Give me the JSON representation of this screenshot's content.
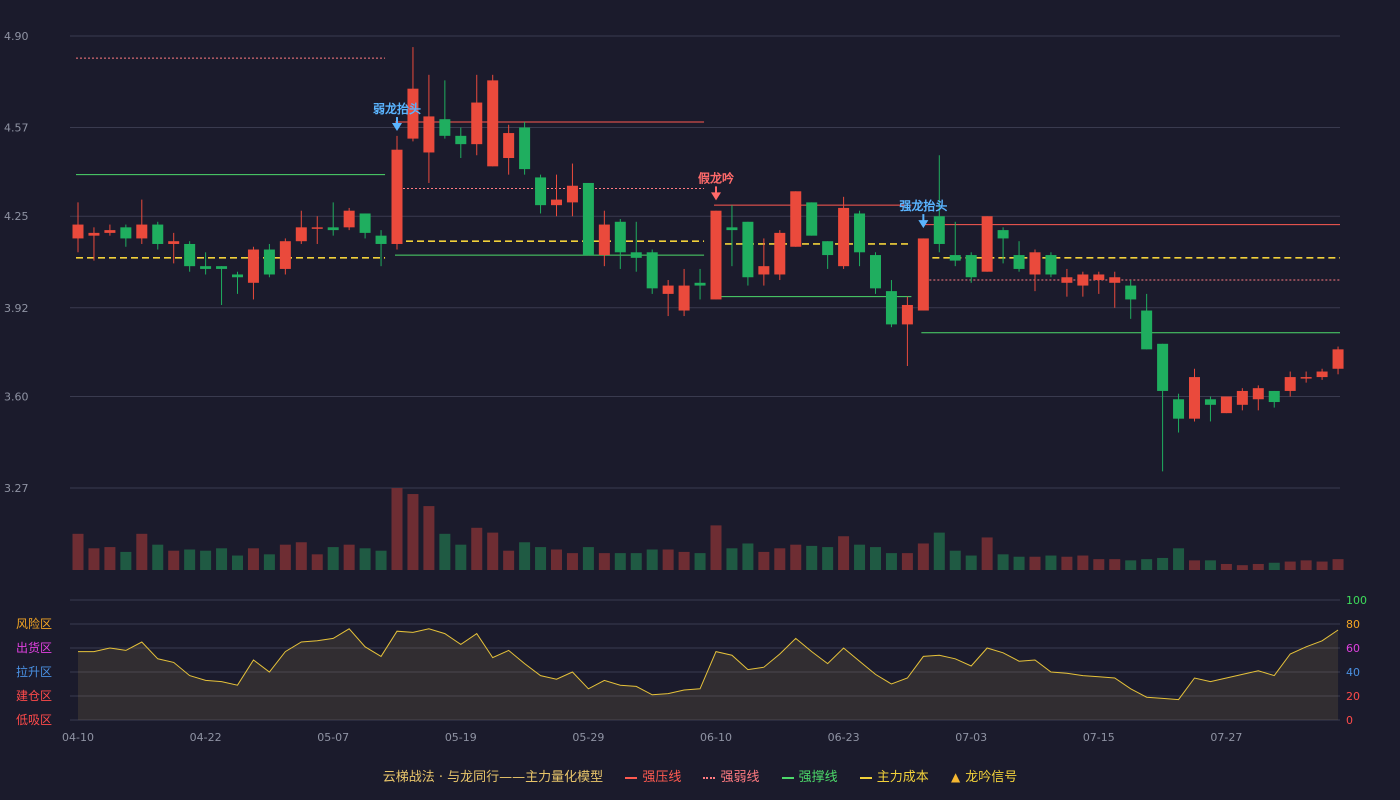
{
  "chart_data": {
    "type": "candlestick",
    "price_axis": {
      "ticks": [
        "4.90",
        "4.57",
        "4.25",
        "3.92",
        "3.60",
        "3.27"
      ],
      "ylim": [
        3.27,
        4.9
      ]
    },
    "x_ticks": [
      {
        "label": "04-10",
        "index": 0
      },
      {
        "label": "04-22",
        "index": 8
      },
      {
        "label": "05-07",
        "index": 16
      },
      {
        "label": "05-19",
        "index": 24
      },
      {
        "label": "05-29",
        "index": 32
      },
      {
        "label": "06-10",
        "index": 40
      },
      {
        "label": "06-23",
        "index": 48
      },
      {
        "label": "07-03",
        "index": 56
      },
      {
        "label": "07-15",
        "index": 64
      },
      {
        "label": "07-27",
        "index": 72
      }
    ],
    "candles": [
      [
        4.17,
        4.22,
        4.3,
        4.12
      ],
      [
        4.18,
        4.19,
        4.21,
        4.09
      ],
      [
        4.19,
        4.2,
        4.22,
        4.18
      ],
      [
        4.21,
        4.17,
        4.22,
        4.14
      ],
      [
        4.17,
        4.22,
        4.31,
        4.15
      ],
      [
        4.22,
        4.15,
        4.23,
        4.13
      ],
      [
        4.15,
        4.16,
        4.19,
        4.08
      ],
      [
        4.15,
        4.07,
        4.16,
        4.05
      ],
      [
        4.07,
        4.06,
        4.12,
        4.04
      ],
      [
        4.07,
        4.06,
        4.07,
        3.93
      ],
      [
        4.04,
        4.03,
        4.05,
        3.97
      ],
      [
        4.01,
        4.13,
        4.14,
        3.95
      ],
      [
        4.13,
        4.04,
        4.15,
        4.03
      ],
      [
        4.06,
        4.16,
        4.17,
        4.04
      ],
      [
        4.16,
        4.21,
        4.27,
        4.15
      ],
      [
        4.21,
        4.21,
        4.25,
        4.15
      ],
      [
        4.21,
        4.2,
        4.3,
        4.18
      ],
      [
        4.21,
        4.27,
        4.28,
        4.2
      ],
      [
        4.26,
        4.19,
        4.26,
        4.17
      ],
      [
        4.18,
        4.15,
        4.2,
        4.07
      ],
      [
        4.15,
        4.49,
        4.54,
        4.13
      ],
      [
        4.53,
        4.71,
        4.86,
        4.52
      ],
      [
        4.48,
        4.61,
        4.76,
        4.37
      ],
      [
        4.6,
        4.54,
        4.74,
        4.53
      ],
      [
        4.54,
        4.51,
        4.57,
        4.46
      ],
      [
        4.51,
        4.66,
        4.76,
        4.47
      ],
      [
        4.43,
        4.74,
        4.76,
        4.43
      ],
      [
        4.46,
        4.55,
        4.58,
        4.4
      ],
      [
        4.57,
        4.42,
        4.59,
        4.4
      ],
      [
        4.39,
        4.29,
        4.4,
        4.26
      ],
      [
        4.29,
        4.31,
        4.4,
        4.25
      ],
      [
        4.3,
        4.36,
        4.44,
        4.25
      ],
      [
        4.37,
        4.11,
        4.37,
        4.11
      ],
      [
        4.11,
        4.22,
        4.27,
        4.07
      ],
      [
        4.23,
        4.12,
        4.24,
        4.06
      ],
      [
        4.12,
        4.1,
        4.23,
        4.05
      ],
      [
        4.12,
        3.99,
        4.13,
        3.97
      ],
      [
        3.97,
        4.0,
        4.02,
        3.89
      ],
      [
        3.91,
        4.0,
        4.06,
        3.89
      ],
      [
        4.01,
        4.0,
        4.06,
        3.95
      ],
      [
        3.95,
        4.27,
        4.27,
        3.95
      ],
      [
        4.21,
        4.2,
        4.29,
        4.07
      ],
      [
        4.23,
        4.03,
        4.23,
        4.0
      ],
      [
        4.04,
        4.07,
        4.17,
        4.0
      ],
      [
        4.04,
        4.19,
        4.2,
        4.02
      ],
      [
        4.14,
        4.34,
        4.34,
        4.14
      ],
      [
        4.3,
        4.18,
        4.3,
        4.18
      ],
      [
        4.16,
        4.11,
        4.16,
        4.06
      ],
      [
        4.07,
        4.28,
        4.32,
        4.06
      ],
      [
        4.26,
        4.12,
        4.27,
        4.07
      ],
      [
        4.11,
        3.99,
        4.12,
        3.97
      ],
      [
        3.98,
        3.86,
        4.02,
        3.85
      ],
      [
        3.86,
        3.93,
        3.96,
        3.71
      ],
      [
        3.91,
        4.17,
        4.17,
        3.91
      ],
      [
        4.25,
        4.15,
        4.47,
        4.12
      ],
      [
        4.11,
        4.09,
        4.23,
        4.07
      ],
      [
        4.11,
        4.03,
        4.12,
        4.01
      ],
      [
        4.05,
        4.25,
        4.25,
        4.05
      ],
      [
        4.2,
        4.17,
        4.21,
        4.08
      ],
      [
        4.11,
        4.06,
        4.16,
        4.05
      ],
      [
        4.04,
        4.12,
        4.13,
        3.98
      ],
      [
        4.11,
        4.04,
        4.12,
        4.03
      ],
      [
        4.01,
        4.03,
        4.06,
        3.96
      ],
      [
        4.0,
        4.04,
        4.05,
        3.96
      ],
      [
        4.02,
        4.04,
        4.05,
        3.97
      ],
      [
        4.01,
        4.03,
        4.05,
        3.92
      ],
      [
        4.0,
        3.95,
        4.02,
        3.88
      ],
      [
        3.91,
        3.77,
        3.97,
        3.77
      ],
      [
        3.79,
        3.62,
        3.79,
        3.33
      ],
      [
        3.59,
        3.52,
        3.61,
        3.47
      ],
      [
        3.52,
        3.67,
        3.7,
        3.51
      ],
      [
        3.59,
        3.57,
        3.6,
        3.51
      ],
      [
        3.54,
        3.6,
        3.6,
        3.54
      ],
      [
        3.57,
        3.62,
        3.63,
        3.55
      ],
      [
        3.59,
        3.63,
        3.64,
        3.55
      ],
      [
        3.62,
        3.58,
        3.62,
        3.56
      ],
      [
        3.62,
        3.67,
        3.69,
        3.6
      ],
      [
        3.67,
        3.67,
        3.69,
        3.65
      ],
      [
        3.67,
        3.69,
        3.7,
        3.66
      ],
      [
        3.7,
        3.77,
        3.78,
        3.68
      ]
    ],
    "volume": [
      30,
      18,
      19,
      15,
      30,
      21,
      16,
      17,
      16,
      18,
      12,
      18,
      13,
      21,
      23,
      13,
      19,
      21,
      18,
      16,
      68,
      63,
      53,
      30,
      21,
      35,
      31,
      16,
      23,
      19,
      17,
      14,
      19,
      14,
      14,
      14,
      17,
      17,
      15,
      14,
      37,
      18,
      22,
      15,
      18,
      21,
      20,
      19,
      28,
      21,
      19,
      14,
      14,
      22,
      31,
      16,
      12,
      27,
      13,
      11,
      11,
      12,
      11,
      12,
      9,
      9,
      8,
      9,
      10,
      18,
      8,
      8,
      5,
      4,
      5,
      6,
      7,
      8,
      7,
      9
    ],
    "oscillator": {
      "ticks": [
        "100",
        "80",
        "60",
        "40",
        "20",
        "0"
      ],
      "ylim": [
        0,
        100
      ],
      "zones": [
        "风险区",
        "出货区",
        "拉升区",
        "建仓区",
        "低吸区"
      ],
      "values": [
        57,
        57,
        60,
        58,
        65,
        51,
        48,
        37,
        33,
        32,
        29,
        50,
        40,
        57,
        65,
        66,
        68,
        76,
        61,
        53,
        74,
        73,
        76,
        72,
        63,
        72,
        52,
        58,
        47,
        37,
        34,
        40,
        26,
        33,
        29,
        28,
        21,
        22,
        25,
        26,
        57,
        54,
        42,
        44,
        55,
        68,
        57,
        47,
        60,
        49,
        38,
        30,
        35,
        53,
        54,
        51,
        45,
        60,
        56,
        49,
        50,
        40,
        39,
        37,
        36,
        35,
        26,
        19,
        18,
        17,
        35,
        32,
        35,
        38,
        41,
        37,
        55,
        61,
        66,
        75
      ]
    },
    "levels": [
      {
        "type": "strong_resistance",
        "value": 4.59,
        "from": 20,
        "to": 39
      },
      {
        "type": "strong_resistance",
        "value": 4.29,
        "from": 40,
        "to": 52
      },
      {
        "type": "strong_resistance",
        "value": 4.22,
        "from": 53,
        "to": 79
      },
      {
        "type": "weak_resistance",
        "value": 4.82,
        "from": 0,
        "to": 19
      },
      {
        "type": "weak_resistance",
        "value": 4.35,
        "from": 20,
        "to": 39
      },
      {
        "type": "weak_resistance",
        "value": 4.02,
        "from": 53,
        "to": 79
      },
      {
        "type": "strong_support",
        "value": 4.4,
        "from": 0,
        "to": 19
      },
      {
        "type": "strong_support",
        "value": 4.11,
        "from": 20,
        "to": 39
      },
      {
        "type": "strong_support",
        "value": 3.96,
        "from": 40,
        "to": 52
      },
      {
        "type": "strong_support",
        "value": 3.83,
        "from": 53,
        "to": 79
      },
      {
        "type": "main_cost",
        "value": 4.1,
        "from": 0,
        "to": 19
      },
      {
        "type": "main_cost",
        "value": 4.16,
        "from": 20,
        "to": 39
      },
      {
        "type": "main_cost",
        "value": 4.15,
        "from": 40,
        "to": 52
      },
      {
        "type": "main_cost",
        "value": 4.1,
        "from": 53,
        "to": 79
      }
    ],
    "signals": [
      {
        "index": 20,
        "price": 4.55,
        "label": "弱龙抬头",
        "kind": "blue"
      },
      {
        "index": 40,
        "price": 4.3,
        "label": "假龙吟",
        "kind": "red"
      },
      {
        "index": 53,
        "price": 4.2,
        "label": "强龙抬头",
        "kind": "blue"
      }
    ]
  },
  "legend": {
    "model": "云梯战法 · 与龙同行——主力量化模型",
    "strong_resistance": "强压线",
    "weak_resistance": "强弱线",
    "strong_support": "强撑线",
    "main_cost": "主力成本",
    "signal": "龙吟信号"
  },
  "colors": {
    "up": "#ea4a3c",
    "down": "#1fae5f",
    "vol_up": "#6e2d33",
    "vol_down": "#1f5a43",
    "resistance": "#ff5a50",
    "support": "#4cd96a",
    "cost": "#f2d13a",
    "osc": "#e6c23a",
    "zone_risk": "#f5a623",
    "zone_dist": "#e040e0",
    "zone_pull": "#4a90e2",
    "zone_build": "#ff4a4a",
    "zone_low": "#ff4a4a"
  }
}
